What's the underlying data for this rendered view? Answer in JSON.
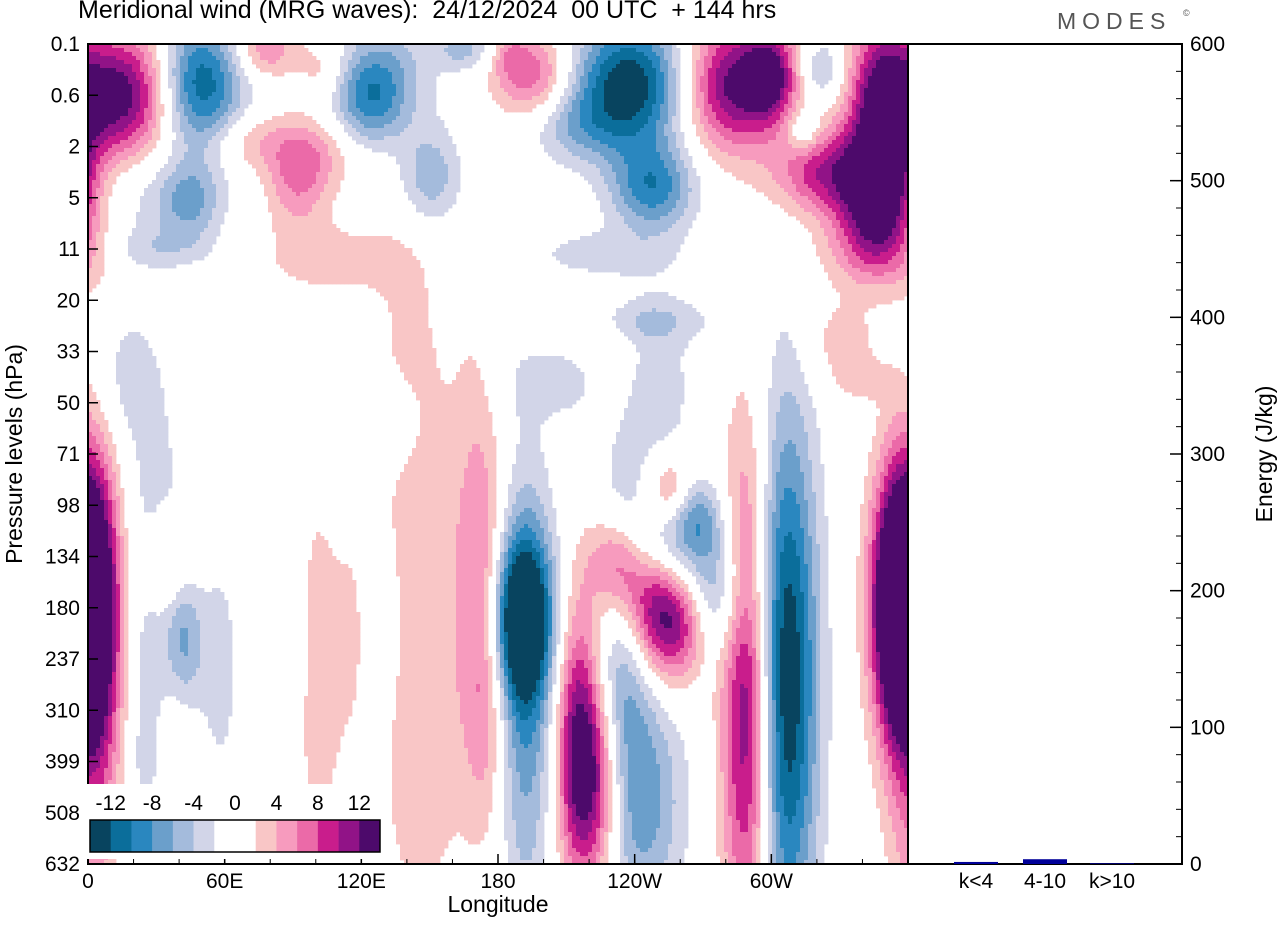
{
  "header": {
    "title": "Meridional wind (MRG waves):  24/12/2024  00 UTC  + 144 hrs",
    "brand": "MODES",
    "brand_mark": "©"
  },
  "colors": {
    "scale": [
      "#08445f",
      "#0b6e9b",
      "#2a87bf",
      "#6b9fcb",
      "#a4bbdc",
      "#d2d5e8",
      "#ffffff",
      "#ffffff",
      "#f9c6c6",
      "#f79bbe",
      "#eb6aa8",
      "#c91d8c",
      "#911387",
      "#4d0a6b"
    ],
    "bar": "#000099"
  },
  "chart_data": [
    {
      "type": "heatmap",
      "title": "Meridional wind (MRG waves):  24/12/2024  00 UTC  + 144 hrs",
      "xlabel": "Longitude",
      "ylabel": "Pressure levels (hPa)",
      "x_ticks": [
        "0",
        "60E",
        "120E",
        "180",
        "120W",
        "60W"
      ],
      "x_tick_degrees": [
        0,
        60,
        120,
        180,
        240,
        300
      ],
      "xlim": [
        0,
        360
      ],
      "y_ticks": [
        "0.1",
        "0.6",
        "2",
        "5",
        "11",
        "20",
        "33",
        "50",
        "71",
        "98",
        "134",
        "180",
        "237",
        "310",
        "399",
        "508",
        "632"
      ],
      "colorbar": {
        "labels": [
          "-12",
          "-8",
          "-4",
          "0",
          "4",
          "8",
          "12"
        ],
        "levels": [
          -12,
          -10,
          -8,
          -6,
          -4,
          -2,
          0,
          2,
          4,
          6,
          8,
          10,
          12
        ]
      },
      "features": [
        {
          "lon": 15,
          "lev": 1.0,
          "w": 18,
          "h": 0.9,
          "v": 14
        },
        {
          "lon": 48,
          "lev": 0.8,
          "w": 14,
          "h": 0.9,
          "v": -13
        },
        {
          "lon": 78,
          "lev": 0.1,
          "w": 10,
          "h": 0.4,
          "v": 6
        },
        {
          "lon": 103,
          "lev": 0.5,
          "w": 7,
          "h": 0.4,
          "v": 3
        },
        {
          "lon": 130,
          "lev": 0.7,
          "w": 14,
          "h": 0.8,
          "v": -7
        },
        {
          "lon": 122,
          "lev": 1.2,
          "w": 10,
          "h": 0.6,
          "v": -5
        },
        {
          "lon": 165,
          "lev": 0.1,
          "w": 9,
          "h": 0.3,
          "v": -5
        },
        {
          "lon": 195,
          "lev": 0.6,
          "w": 12,
          "h": 0.6,
          "v": 8
        },
        {
          "lon": 185,
          "lev": 0.2,
          "w": 5,
          "h": 0.3,
          "v": 3
        },
        {
          "lon": 238,
          "lev": 0.8,
          "w": 18,
          "h": 0.9,
          "v": -14
        },
        {
          "lon": 213,
          "lev": 1.6,
          "w": 15,
          "h": 0.5,
          "v": -4
        },
        {
          "lon": 248,
          "lev": 2.8,
          "w": 13,
          "h": 0.6,
          "v": -9
        },
        {
          "lon": 283,
          "lev": 0.8,
          "w": 16,
          "h": 0.9,
          "v": 13
        },
        {
          "lon": 300,
          "lev": 0.6,
          "w": 8,
          "h": 0.6,
          "v": 9
        },
        {
          "lon": 322,
          "lev": 0.5,
          "w": 7,
          "h": 0.4,
          "v": -5
        },
        {
          "lon": 314,
          "lev": 1.7,
          "w": 5,
          "h": 0.3,
          "v": -5
        },
        {
          "lon": 348,
          "lev": 1.4,
          "w": 10,
          "h": 1.4,
          "v": 12
        },
        {
          "lon": 322,
          "lev": 2.5,
          "w": 15,
          "h": 0.6,
          "v": 9
        },
        {
          "lon": 346,
          "lev": 3.0,
          "w": 12,
          "h": 0.8,
          "v": 11
        },
        {
          "lon": 345,
          "lev": 4.1,
          "w": 18,
          "h": 0.5,
          "v": 4
        },
        {
          "lon": 70,
          "lev": 1.9,
          "w": 12,
          "h": 0.4,
          "v": 4
        },
        {
          "lon": 92,
          "lev": 2.6,
          "w": 10,
          "h": 0.7,
          "v": 6
        },
        {
          "lon": 103,
          "lev": 2.1,
          "w": 14,
          "h": 0.5,
          "v": 3
        },
        {
          "lon": 150,
          "lev": 2.6,
          "w": 10,
          "h": 0.7,
          "v": -6
        },
        {
          "lon": 182,
          "lev": 2.4,
          "w": 8,
          "h": 0.4,
          "v": 2
        },
        {
          "lon": 30,
          "lev": 2.9,
          "w": 20,
          "h": 0.7,
          "v": -3
        },
        {
          "lon": 45,
          "lev": 3.1,
          "w": 9,
          "h": 0.5,
          "v": -5
        },
        {
          "lon": 105,
          "lev": 4.2,
          "w": 22,
          "h": 0.5,
          "v": 3
        },
        {
          "lon": 30,
          "lev": 4.0,
          "w": 18,
          "h": 0.3,
          "v": -3
        },
        {
          "lon": 225,
          "lev": 4.1,
          "w": 22,
          "h": 0.35,
          "v": -3
        },
        {
          "lon": 245,
          "lev": 5.4,
          "w": 22,
          "h": 0.3,
          "v": -3
        },
        {
          "lon": 250,
          "lev": 6.8,
          "w": 12,
          "h": 1.5,
          "v": -3
        },
        {
          "lon": 230,
          "lev": 6.3,
          "w": 8,
          "h": 0.7,
          "v": 3
        },
        {
          "lon": 330,
          "lev": 5.8,
          "w": 12,
          "h": 0.6,
          "v": 3
        },
        {
          "lon": 340,
          "lev": 6.6,
          "w": 10,
          "h": 0.3,
          "v": 2
        },
        {
          "lon": 15,
          "lev": 6.5,
          "w": 12,
          "h": 1.0,
          "v": -3
        },
        {
          "lon": 210,
          "lev": 6.6,
          "w": 18,
          "h": 0.5,
          "v": -3
        },
        {
          "lon": 130,
          "lev": 7.4,
          "w": 10,
          "h": 0.6,
          "v": -3
        },
        {
          "lon": 62,
          "lev": 6.2,
          "w": 9,
          "h": 0.5,
          "v": 2
        },
        {
          "lon": 140,
          "lev": 7.0,
          "w": 12,
          "h": 3.6,
          "v": 2.5
        },
        {
          "lon": 170,
          "lev": 9.0,
          "w": 8,
          "h": 3.0,
          "v": 2.5
        },
        {
          "lon": 255,
          "lev": 8.7,
          "w": 7,
          "h": 0.5,
          "v": 6
        },
        {
          "lon": 268,
          "lev": 9.2,
          "w": 8,
          "h": 0.5,
          "v": -5
        },
        {
          "lon": 29,
          "lev": 9.6,
          "w": 12,
          "h": 2.0,
          "v": -3
        },
        {
          "lon": 37,
          "lev": 10.2,
          "w": 8,
          "h": 0.7,
          "v": 6
        },
        {
          "lon": 232,
          "lev": 10.1,
          "w": 9,
          "h": 0.7,
          "v": 9
        },
        {
          "lon": 247,
          "lev": 10.8,
          "w": 12,
          "h": 0.9,
          "v": 10
        },
        {
          "lon": 258,
          "lev": 11.4,
          "w": 10,
          "h": 0.8,
          "v": 8
        },
        {
          "lon": 255,
          "lev": 9.9,
          "w": 14,
          "h": 0.7,
          "v": -7
        },
        {
          "lon": 277,
          "lev": 10.8,
          "w": 10,
          "h": 0.9,
          "v": -6
        },
        {
          "lon": 190,
          "lev": 11.2,
          "w": 10,
          "h": 1.1,
          "v": -14
        },
        {
          "lon": 192,
          "lev": 12.5,
          "w": 9,
          "h": 3.0,
          "v": -8
        },
        {
          "lon": 175,
          "lev": 11.8,
          "w": 7,
          "h": 2.4,
          "v": 7
        },
        {
          "lon": 155,
          "lev": 12.2,
          "w": 10,
          "h": 3.4,
          "v": 2.5
        },
        {
          "lon": 215,
          "lev": 13.4,
          "w": 7,
          "h": 1.9,
          "v": 10
        },
        {
          "lon": 234,
          "lev": 12.2,
          "w": 9,
          "h": 2.6,
          "v": -7
        },
        {
          "lon": 223,
          "lev": 14.4,
          "w": 9,
          "h": 1.4,
          "v": 10
        },
        {
          "lon": 246,
          "lev": 14.8,
          "w": 12,
          "h": 1.6,
          "v": -6
        },
        {
          "lon": 290,
          "lev": 12.8,
          "w": 8,
          "h": 3.4,
          "v": 14
        },
        {
          "lon": 306,
          "lev": 12.4,
          "w": 10,
          "h": 3.6,
          "v": -15
        },
        {
          "lon": 356,
          "lev": 10.9,
          "w": 8,
          "h": 1.6,
          "v": 13
        },
        {
          "lon": 360,
          "lev": 12.6,
          "w": 8,
          "h": 4.0,
          "v": 3
        },
        {
          "lon": 0,
          "lev": 11.0,
          "w": 10,
          "h": 2.0,
          "v": 14
        },
        {
          "lon": 5,
          "lev": 13.0,
          "w": 8,
          "h": 4.0,
          "v": 3
        },
        {
          "lon": 42,
          "lev": 11.6,
          "w": 6,
          "h": 1.2,
          "v": -7
        },
        {
          "lon": 58,
          "lev": 12.2,
          "w": 6,
          "h": 1.6,
          "v": -3
        },
        {
          "lon": 40,
          "lev": 13.5,
          "w": 6,
          "h": 1.4,
          "v": 3
        },
        {
          "lon": 100,
          "lev": 12.3,
          "w": 8,
          "h": 2.4,
          "v": 4
        },
        {
          "lon": 115,
          "lev": 11.6,
          "w": 5,
          "h": 1.5,
          "v": 2
        },
        {
          "lon": 25,
          "lev": 13.7,
          "w": 6,
          "h": 2.0,
          "v": -3
        },
        {
          "lon": 90,
          "lev": 12.0,
          "w": 5,
          "h": 1.6,
          "v": -3
        },
        {
          "lon": 140,
          "lev": 14.7,
          "w": 10,
          "h": 1.8,
          "v": 2
        }
      ]
    },
    {
      "type": "bar",
      "categories": [
        "k<4",
        "4-10",
        "k>10"
      ],
      "values": [
        1.5,
        3.5,
        0.5
      ],
      "ylabel": "Energy (J/kg)",
      "ylim": [
        0,
        600
      ],
      "y_ticks": [
        "0",
        "100",
        "200",
        "300",
        "400",
        "500",
        "600"
      ]
    }
  ]
}
